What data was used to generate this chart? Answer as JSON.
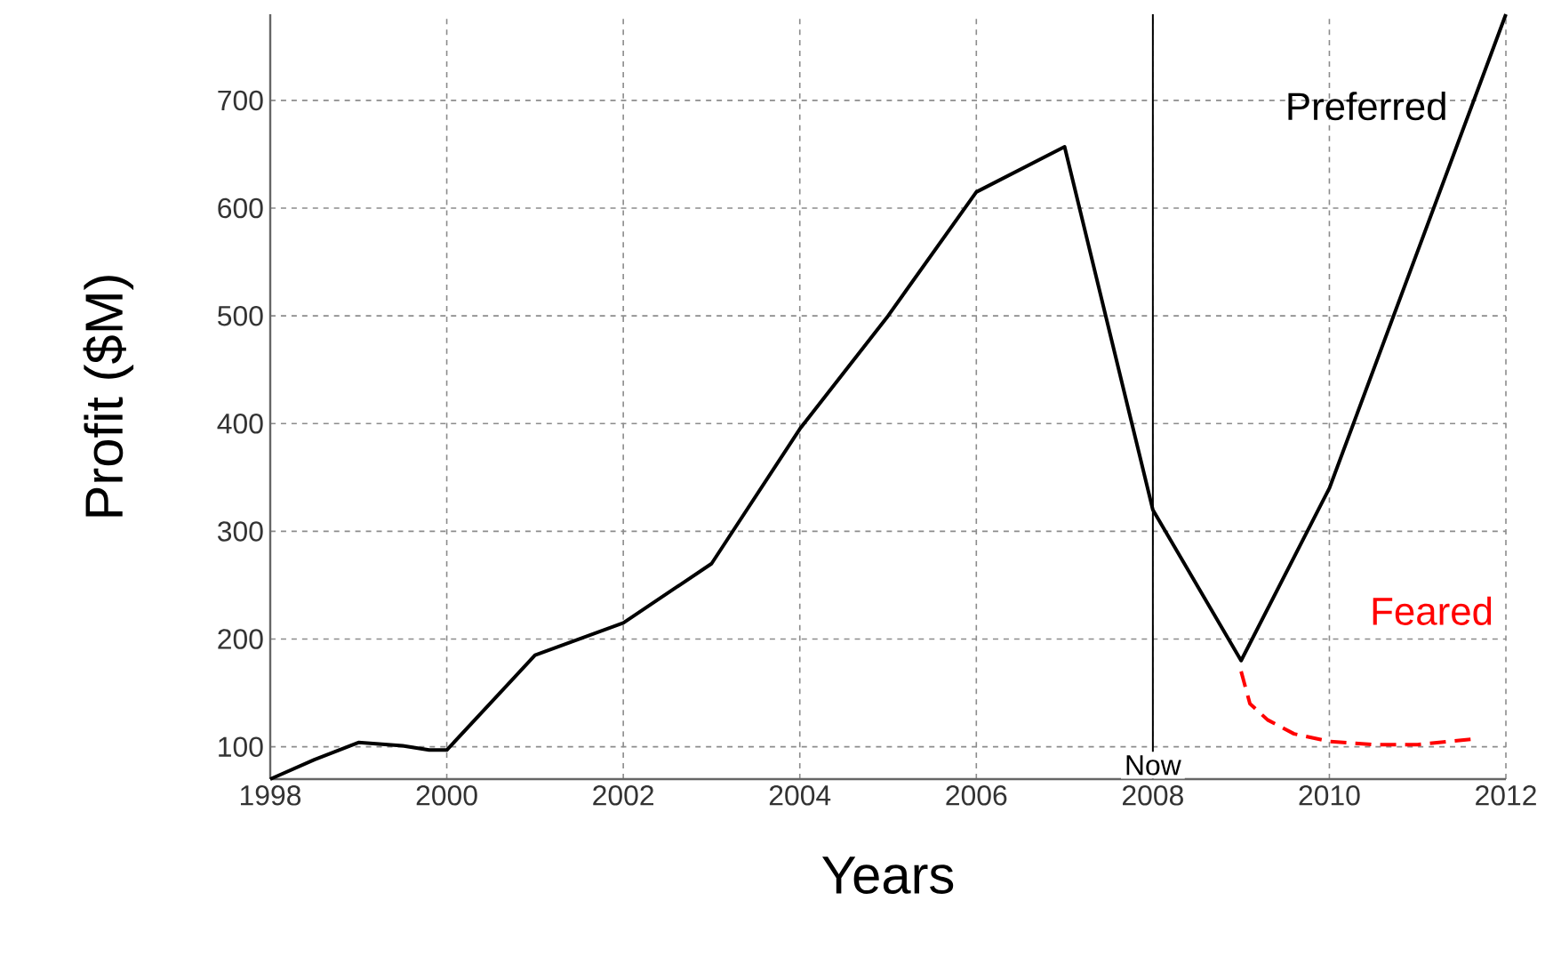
{
  "chart_data": {
    "type": "line",
    "xlabel": "Years",
    "ylabel": "Profit ($M)",
    "xlim": [
      1998,
      2012
    ],
    "ylim": [
      70,
      780
    ],
    "xticks": [
      1998,
      2000,
      2002,
      2004,
      2006,
      2008,
      2010,
      2012
    ],
    "yticks": [
      100,
      200,
      300,
      400,
      500,
      600,
      700
    ],
    "grid": true,
    "marker": "none",
    "series": [
      {
        "name": "Preferred",
        "color": "#000000",
        "line_style": "solid",
        "x": [
          1998,
          1998.5,
          1999,
          1999.5,
          1999.8,
          2000,
          2001,
          2002,
          2003,
          2004,
          2005,
          2006,
          2007,
          2008,
          2009,
          2010,
          2012
        ],
        "values": [
          70,
          88,
          104,
          101,
          97,
          97,
          185,
          215,
          270,
          395,
          500,
          615,
          657,
          320,
          180,
          340,
          780
        ]
      },
      {
        "name": "Feared",
        "color": "#ff0000",
        "line_style": "dashed",
        "x": [
          2009,
          2009.1,
          2009.3,
          2009.6,
          2010,
          2010.5,
          2011,
          2011.6
        ],
        "values": [
          170,
          140,
          125,
          112,
          105,
          102,
          102,
          107
        ]
      }
    ],
    "ref_lines": [
      {
        "axis": "x",
        "value": 2008,
        "label": "Now",
        "color": "#000000"
      }
    ]
  }
}
